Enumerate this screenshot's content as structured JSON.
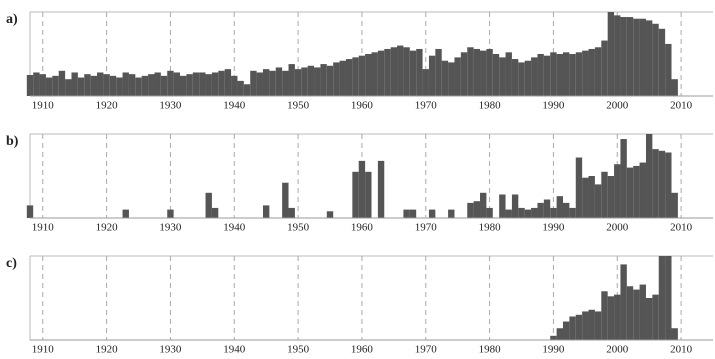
{
  "chart_data": [
    {
      "type": "bar",
      "title": "a)",
      "color": "#555555",
      "grid": "x",
      "xlim": [
        1908,
        2015
      ],
      "ylim": [
        0,
        100
      ],
      "xticks": [
        1910,
        1920,
        1930,
        1940,
        1950,
        1960,
        1970,
        1980,
        1990,
        2000,
        2010
      ],
      "x": [
        1908,
        1909,
        1910,
        1911,
        1912,
        1913,
        1914,
        1915,
        1916,
        1917,
        1918,
        1919,
        1920,
        1921,
        1922,
        1923,
        1924,
        1925,
        1926,
        1927,
        1928,
        1929,
        1930,
        1931,
        1932,
        1933,
        1934,
        1935,
        1936,
        1937,
        1938,
        1939,
        1940,
        1941,
        1942,
        1943,
        1944,
        1945,
        1946,
        1947,
        1948,
        1949,
        1950,
        1951,
        1952,
        1953,
        1954,
        1955,
        1956,
        1957,
        1958,
        1959,
        1960,
        1961,
        1962,
        1963,
        1964,
        1965,
        1966,
        1967,
        1968,
        1969,
        1970,
        1971,
        1972,
        1973,
        1974,
        1975,
        1976,
        1977,
        1978,
        1979,
        1980,
        1981,
        1982,
        1983,
        1984,
        1985,
        1986,
        1987,
        1988,
        1989,
        1990,
        1991,
        1992,
        1993,
        1994,
        1995,
        1996,
        1997,
        1998,
        1999,
        2000,
        2001,
        2002,
        2003,
        2004,
        2005,
        2006,
        2007,
        2008,
        2009
      ],
      "values": [
        25,
        28,
        26,
        22,
        24,
        30,
        20,
        28,
        22,
        26,
        24,
        28,
        26,
        24,
        22,
        28,
        26,
        22,
        24,
        26,
        28,
        24,
        30,
        28,
        24,
        26,
        28,
        28,
        26,
        28,
        30,
        32,
        24,
        18,
        14,
        30,
        28,
        32,
        30,
        34,
        30,
        38,
        32,
        34,
        36,
        34,
        38,
        36,
        40,
        42,
        44,
        46,
        48,
        50,
        52,
        54,
        56,
        58,
        60,
        58,
        54,
        56,
        32,
        48,
        56,
        42,
        40,
        46,
        52,
        58,
        56,
        54,
        56,
        50,
        46,
        52,
        44,
        40,
        42,
        46,
        50,
        48,
        52,
        50,
        52,
        50,
        52,
        54,
        56,
        58,
        66,
        100,
        96,
        94,
        94,
        92,
        92,
        90,
        86,
        80,
        62,
        20
      ]
    },
    {
      "type": "bar",
      "title": "b)",
      "color": "#555555",
      "grid": "x",
      "xlim": [
        1908,
        2015
      ],
      "ylim": [
        0,
        100
      ],
      "xticks": [
        1910,
        1920,
        1930,
        1940,
        1950,
        1960,
        1970,
        1980,
        1990,
        2000,
        2010
      ],
      "x": [
        1908,
        1923,
        1930,
        1936,
        1937,
        1945,
        1948,
        1949,
        1955,
        1959,
        1960,
        1961,
        1963,
        1967,
        1968,
        1971,
        1974,
        1977,
        1978,
        1979,
        1980,
        1982,
        1983,
        1984,
        1985,
        1986,
        1987,
        1988,
        1989,
        1990,
        1991,
        1992,
        1993,
        1994,
        1995,
        1996,
        1997,
        1998,
        1999,
        2000,
        2001,
        2002,
        2003,
        2004,
        2005,
        2006,
        2007,
        2008,
        2009
      ],
      "values": [
        15,
        10,
        10,
        30,
        12,
        15,
        42,
        12,
        8,
        55,
        68,
        55,
        68,
        10,
        10,
        10,
        10,
        18,
        20,
        30,
        12,
        28,
        10,
        28,
        12,
        10,
        12,
        18,
        22,
        12,
        26,
        18,
        12,
        72,
        48,
        50,
        40,
        55,
        50,
        64,
        94,
        60,
        62,
        66,
        100,
        82,
        80,
        78,
        30
      ]
    },
    {
      "type": "bar",
      "title": "c)",
      "color": "#555555",
      "grid": "x",
      "xlim": [
        1908,
        2015
      ],
      "ylim": [
        0,
        100
      ],
      "xticks": [
        1910,
        1920,
        1930,
        1940,
        1950,
        1960,
        1970,
        1980,
        1990,
        2000,
        2010
      ],
      "x": [
        1990,
        1991,
        1992,
        1993,
        1994,
        1995,
        1996,
        1997,
        1998,
        1999,
        2000,
        2001,
        2002,
        2003,
        2004,
        2005,
        2006,
        2007,
        2008,
        2009
      ],
      "values": [
        5,
        14,
        22,
        28,
        30,
        34,
        36,
        34,
        58,
        52,
        54,
        90,
        64,
        60,
        66,
        50,
        54,
        100,
        100,
        14
      ]
    }
  ]
}
